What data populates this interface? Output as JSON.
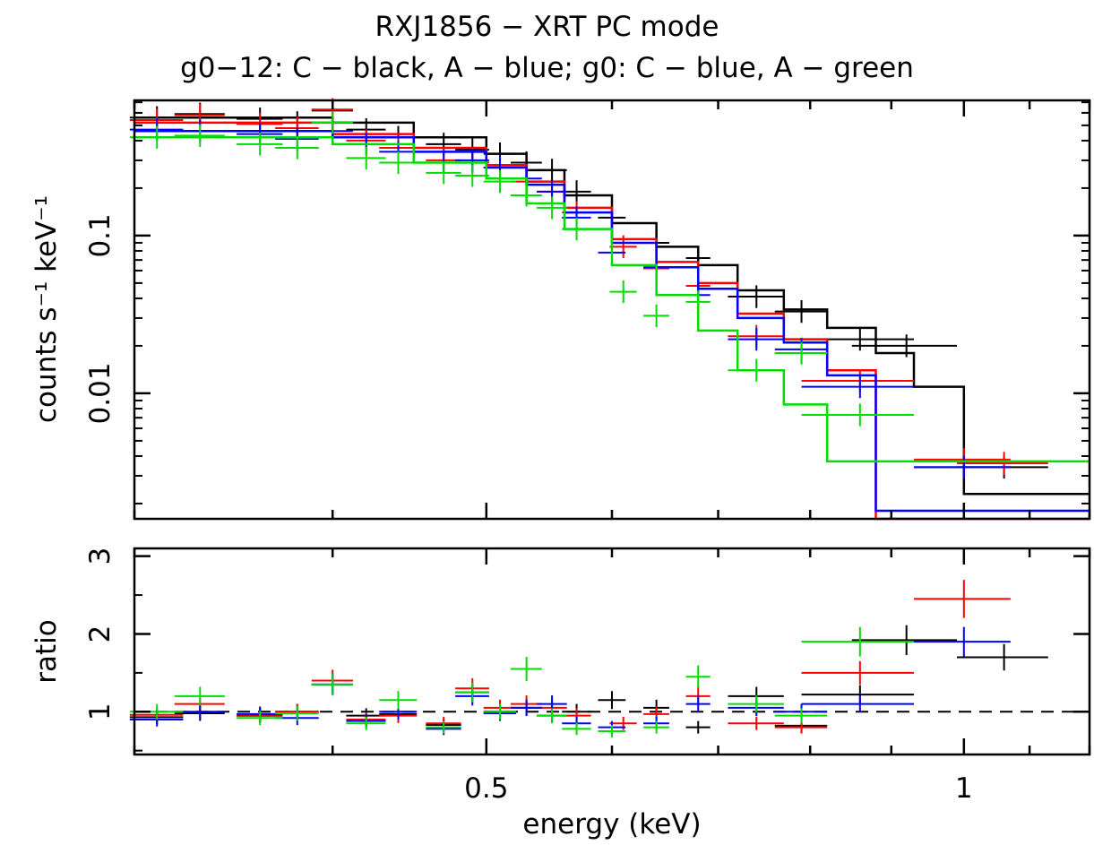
{
  "chart_data": {
    "type": "scatter",
    "title": "RXJ1856 − XRT PC mode",
    "subtitle": "g0−12: C − black, A − blue; g0: C − blue, A − green",
    "xlabel": "energy (keV)",
    "x_scale": "log",
    "xlim": [
      0.3,
      1.2
    ],
    "x_ticks": [
      {
        "value": 0.5,
        "label": "0.5"
      },
      {
        "value": 1,
        "label": "1"
      }
    ],
    "panels": [
      {
        "name": "spectrum",
        "ylabel": "counts s⁻¹ keV⁻¹",
        "y_scale": "log",
        "ylim": [
          0.0016,
          0.72
        ],
        "y_ticks": [
          {
            "value": 0.1,
            "label": "0.1"
          },
          {
            "value": 0.01,
            "label": "0.01"
          }
        ],
        "series": [
          {
            "color": "#000000",
            "points": [
              [
                0.31,
                0.56
              ],
              [
                0.33,
                0.59
              ],
              [
                0.36,
                0.55
              ],
              [
                0.38,
                0.52
              ],
              [
                0.4,
                0.62
              ],
              [
                0.42,
                0.47
              ],
              [
                0.44,
                0.42
              ],
              [
                0.47,
                0.38
              ],
              [
                0.49,
                0.35
              ],
              [
                0.51,
                0.33
              ],
              [
                0.53,
                0.29
              ],
              [
                0.55,
                0.26
              ],
              [
                0.57,
                0.19
              ],
              [
                0.6,
                0.13
              ],
              [
                0.64,
                0.09
              ],
              [
                0.68,
                0.072
              ],
              [
                0.74,
                0.041
              ],
              [
                0.79,
                0.033
              ],
              [
                0.86,
                0.022
              ],
              [
                0.92,
                0.02
              ],
              [
                1.0,
                0.0034
              ],
              [
                1.06,
                0.0034
              ]
            ],
            "model": [
              [
                0.3,
                0.56
              ],
              [
                0.4,
                0.52
              ],
              [
                0.45,
                0.42
              ],
              [
                0.5,
                0.33
              ],
              [
                0.53,
                0.26
              ],
              [
                0.56,
                0.18
              ],
              [
                0.6,
                0.12
              ],
              [
                0.64,
                0.085
              ],
              [
                0.68,
                0.065
              ],
              [
                0.72,
                0.045
              ],
              [
                0.77,
                0.034
              ],
              [
                0.82,
                0.026
              ],
              [
                0.88,
                0.018
              ],
              [
                0.93,
                0.011
              ],
              [
                1.0,
                0.0023
              ],
              [
                1.2,
                0.0023
              ]
            ]
          },
          {
            "color": "#ff0000",
            "points": [
              [
                0.31,
                0.54
              ],
              [
                0.33,
                0.58
              ],
              [
                0.36,
                0.51
              ],
              [
                0.38,
                0.48
              ],
              [
                0.4,
                0.63
              ],
              [
                0.42,
                0.4
              ],
              [
                0.44,
                0.36
              ],
              [
                0.47,
                0.3
              ],
              [
                0.49,
                0.29
              ],
              [
                0.51,
                0.27
              ],
              [
                0.53,
                0.22
              ],
              [
                0.55,
                0.19
              ],
              [
                0.57,
                0.14
              ],
              [
                0.61,
                0.085
              ],
              [
                0.64,
                0.062
              ],
              [
                0.68,
                0.048
              ],
              [
                0.74,
                0.023
              ],
              [
                0.79,
                0.018
              ],
              [
                0.86,
                0.012
              ],
              [
                1.0,
                0.0038
              ],
              [
                1.06,
                0.0036
              ]
            ],
            "model": [
              [
                0.3,
                0.52
              ],
              [
                0.4,
                0.44
              ],
              [
                0.45,
                0.36
              ],
              [
                0.5,
                0.28
              ],
              [
                0.53,
                0.22
              ],
              [
                0.56,
                0.15
              ],
              [
                0.6,
                0.095
              ],
              [
                0.64,
                0.068
              ],
              [
                0.68,
                0.05
              ],
              [
                0.72,
                0.032
              ],
              [
                0.77,
                0.022
              ],
              [
                0.82,
                0.014
              ],
              [
                0.88,
                0.009
              ],
              [
                0.88,
                0.0016
              ],
              [
                1.2,
                0.0016
              ]
            ]
          },
          {
            "color": "#0000ff",
            "points": [
              [
                0.31,
                0.47
              ],
              [
                0.33,
                0.46
              ],
              [
                0.36,
                0.44
              ],
              [
                0.38,
                0.41
              ],
              [
                0.4,
                0.46
              ],
              [
                0.42,
                0.38
              ],
              [
                0.44,
                0.34
              ],
              [
                0.47,
                0.29
              ],
              [
                0.49,
                0.3
              ],
              [
                0.51,
                0.27
              ],
              [
                0.53,
                0.23
              ],
              [
                0.55,
                0.19
              ],
              [
                0.57,
                0.13
              ],
              [
                0.6,
                0.078
              ],
              [
                0.64,
                0.063
              ],
              [
                0.68,
                0.042
              ],
              [
                0.74,
                0.022
              ],
              [
                0.79,
                0.019
              ],
              [
                0.86,
                0.011
              ],
              [
                1.0,
                0.0034
              ]
            ],
            "model": [
              [
                0.3,
                0.46
              ],
              [
                0.4,
                0.42
              ],
              [
                0.45,
                0.34
              ],
              [
                0.5,
                0.27
              ],
              [
                0.53,
                0.21
              ],
              [
                0.56,
                0.14
              ],
              [
                0.6,
                0.09
              ],
              [
                0.64,
                0.063
              ],
              [
                0.68,
                0.046
              ],
              [
                0.72,
                0.03
              ],
              [
                0.77,
                0.021
              ],
              [
                0.82,
                0.013
              ],
              [
                0.88,
                0.0085
              ],
              [
                0.88,
                0.0018
              ],
              [
                1.2,
                0.0018
              ]
            ]
          },
          {
            "color": "#00dd00",
            "points": [
              [
                0.31,
                0.42
              ],
              [
                0.33,
                0.43
              ],
              [
                0.36,
                0.38
              ],
              [
                0.38,
                0.36
              ],
              [
                0.4,
                0.52
              ],
              [
                0.42,
                0.31
              ],
              [
                0.44,
                0.29
              ],
              [
                0.47,
                0.25
              ],
              [
                0.49,
                0.24
              ],
              [
                0.51,
                0.22
              ],
              [
                0.53,
                0.18
              ],
              [
                0.55,
                0.15
              ],
              [
                0.57,
                0.11
              ],
              [
                0.61,
                0.044
              ],
              [
                0.64,
                0.031
              ],
              [
                0.68,
                0.038
              ],
              [
                0.74,
                0.014
              ],
              [
                0.79,
                0.018
              ],
              [
                0.86,
                0.0073
              ]
            ],
            "model": [
              [
                0.3,
                0.42
              ],
              [
                0.4,
                0.38
              ],
              [
                0.45,
                0.29
              ],
              [
                0.5,
                0.23
              ],
              [
                0.53,
                0.16
              ],
              [
                0.56,
                0.11
              ],
              [
                0.6,
                0.065
              ],
              [
                0.64,
                0.042
              ],
              [
                0.68,
                0.025
              ],
              [
                0.72,
                0.014
              ],
              [
                0.77,
                0.0085
              ],
              [
                0.82,
                0.0037
              ],
              [
                1.2,
                0.0037
              ]
            ]
          }
        ]
      },
      {
        "name": "ratio",
        "ylabel": "ratio",
        "y_scale": "linear",
        "ylim": [
          0.45,
          3.1
        ],
        "y_ticks": [
          {
            "value": 1,
            "label": "1"
          },
          {
            "value": 2,
            "label": "2"
          },
          {
            "value": 3,
            "label": "3"
          }
        ],
        "reference_line": 1,
        "series": [
          {
            "color": "#000000",
            "points": [
              [
                0.31,
                0.93
              ],
              [
                0.33,
                0.98
              ],
              [
                0.36,
                0.95
              ],
              [
                0.38,
                1.0
              ],
              [
                0.4,
                1.35
              ],
              [
                0.42,
                0.95
              ],
              [
                0.44,
                0.97
              ],
              [
                0.47,
                0.83
              ],
              [
                0.49,
                1.25
              ],
              [
                0.51,
                1.0
              ],
              [
                0.53,
                1.05
              ],
              [
                0.55,
                0.95
              ],
              [
                0.57,
                1.0
              ],
              [
                0.6,
                1.15
              ],
              [
                0.64,
                1.05
              ],
              [
                0.68,
                0.8
              ],
              [
                0.74,
                1.2
              ],
              [
                0.79,
                0.82
              ],
              [
                0.86,
                1.22
              ],
              [
                0.92,
                1.92
              ],
              [
                1.06,
                1.7
              ]
            ]
          },
          {
            "color": "#ff0000",
            "points": [
              [
                0.31,
                0.96
              ],
              [
                0.33,
                1.1
              ],
              [
                0.36,
                0.96
              ],
              [
                0.38,
                1.0
              ],
              [
                0.4,
                1.4
              ],
              [
                0.42,
                0.9
              ],
              [
                0.44,
                0.95
              ],
              [
                0.47,
                0.85
              ],
              [
                0.49,
                1.3
              ],
              [
                0.51,
                1.05
              ],
              [
                0.53,
                1.1
              ],
              [
                0.55,
                1.05
              ],
              [
                0.57,
                0.95
              ],
              [
                0.61,
                0.85
              ],
              [
                0.64,
                0.97
              ],
              [
                0.68,
                1.2
              ],
              [
                0.74,
                0.85
              ],
              [
                0.79,
                0.8
              ],
              [
                0.86,
                1.5
              ],
              [
                1.0,
                2.45
              ]
            ]
          },
          {
            "color": "#0000ff",
            "points": [
              [
                0.31,
                0.9
              ],
              [
                0.33,
                1.0
              ],
              [
                0.36,
                0.97
              ],
              [
                0.38,
                0.92
              ],
              [
                0.4,
                1.35
              ],
              [
                0.42,
                0.88
              ],
              [
                0.44,
                1.0
              ],
              [
                0.47,
                0.78
              ],
              [
                0.49,
                1.2
              ],
              [
                0.51,
                0.98
              ],
              [
                0.53,
                1.05
              ],
              [
                0.55,
                1.1
              ],
              [
                0.57,
                0.85
              ],
              [
                0.6,
                0.8
              ],
              [
                0.64,
                0.85
              ],
              [
                0.68,
                1.1
              ],
              [
                0.74,
                1.05
              ],
              [
                0.79,
                1.0
              ],
              [
                0.86,
                1.1
              ],
              [
                1.0,
                1.9
              ]
            ]
          },
          {
            "color": "#00dd00",
            "points": [
              [
                0.31,
                1.0
              ],
              [
                0.33,
                1.2
              ],
              [
                0.36,
                0.92
              ],
              [
                0.38,
                0.98
              ],
              [
                0.4,
                1.35
              ],
              [
                0.42,
                0.85
              ],
              [
                0.44,
                1.15
              ],
              [
                0.47,
                0.8
              ],
              [
                0.49,
                1.25
              ],
              [
                0.51,
                1.0
              ],
              [
                0.53,
                1.55
              ],
              [
                0.55,
                0.95
              ],
              [
                0.57,
                0.78
              ],
              [
                0.6,
                0.75
              ],
              [
                0.64,
                0.8
              ],
              [
                0.68,
                1.45
              ],
              [
                0.74,
                1.1
              ],
              [
                0.79,
                0.95
              ],
              [
                0.86,
                1.9
              ]
            ]
          }
        ]
      }
    ]
  }
}
